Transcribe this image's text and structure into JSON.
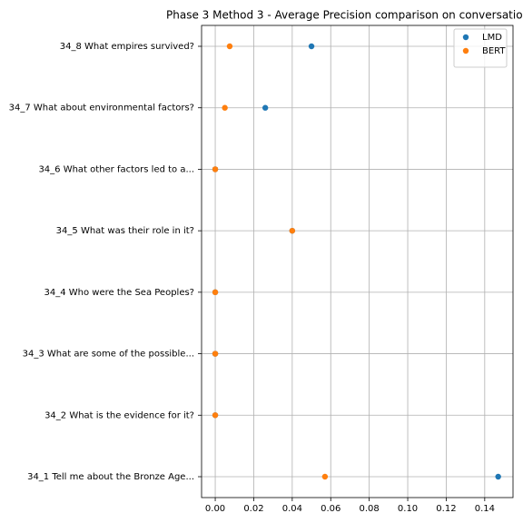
{
  "chart_data": {
    "type": "scatter",
    "title": "Phase 3 Method 3 - Average Precision comparison on conversatio",
    "categories": [
      "34_1 Tell me about the Bronze Age...",
      "34_2 What is the evidence for it?",
      "34_3 What are some of the possible...",
      "34_4 Who were the Sea Peoples?",
      "34_5 What was their role in it?",
      "34_6 What other factors led to a...",
      "34_7 What about environmental factors?",
      "34_8 What empires survived?"
    ],
    "series": [
      {
        "name": "LMD",
        "color": "#1f77b4",
        "values": [
          0.147,
          0.0,
          0.0,
          0.0,
          0.04,
          0.0,
          0.026,
          0.05
        ]
      },
      {
        "name": "BERT",
        "color": "#ff7f0e",
        "values": [
          0.057,
          0.0,
          0.0,
          0.0,
          0.04,
          0.0,
          0.005,
          0.0075
        ]
      }
    ],
    "xlim": [
      -0.0071,
      0.1547
    ],
    "xticks": [
      {
        "value": 0,
        "label": "0.00"
      },
      {
        "value": 0.02,
        "label": "0.02"
      },
      {
        "value": 0.04,
        "label": "0.04"
      },
      {
        "value": 0.06,
        "label": "0.06"
      },
      {
        "value": 0.08,
        "label": "0.08"
      },
      {
        "value": 0.1,
        "label": "0.10"
      },
      {
        "value": 0.12,
        "label": "0.12"
      },
      {
        "value": 0.14,
        "label": "0.14"
      }
    ],
    "grid": true,
    "legend": "upper right"
  }
}
